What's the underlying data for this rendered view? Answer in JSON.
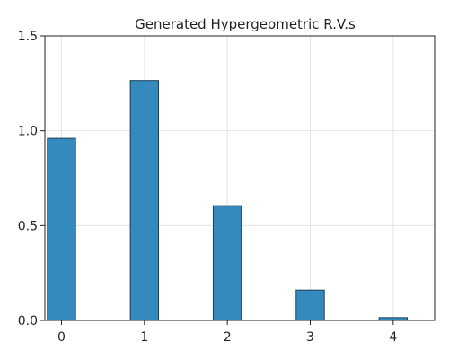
{
  "chart_data": {
    "type": "bar",
    "title": "Generated Hypergeometric R.V.s",
    "xlabel": "",
    "ylabel": "",
    "bars": [
      {
        "x": 0,
        "value": 0.96
      },
      {
        "x": 1,
        "value": 1.265
      },
      {
        "x": 2,
        "value": 0.605
      },
      {
        "x": 3,
        "value": 0.16
      },
      {
        "x": 4,
        "value": 0.015
      }
    ],
    "bin_width": 0.34,
    "xlim": [
      -0.2,
      4.5
    ],
    "ylim": [
      0,
      1.5
    ],
    "x_ticks": [
      0,
      1,
      2,
      3,
      4
    ],
    "x_tick_labels": [
      "0",
      "1",
      "2",
      "3",
      "4"
    ],
    "y_ticks": [
      0.0,
      0.5,
      1.0,
      1.5
    ],
    "y_tick_labels": [
      "0.0",
      "0.5",
      "1.0",
      "1.5"
    ],
    "grid": true,
    "legend": "none",
    "bar_color": "#348ABD",
    "bar_edge_color": "#1f3f55"
  }
}
